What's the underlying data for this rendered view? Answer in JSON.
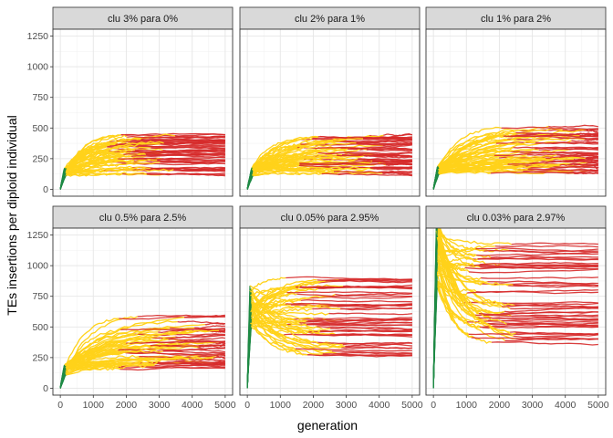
{
  "chart_data": {
    "type": "line",
    "ylabel": "TEs insertions per diploid individual",
    "xlabel": "generation",
    "xlim": [
      0,
      5000
    ],
    "ylim": [
      0,
      1250
    ],
    "xticks": [
      0,
      1000,
      2000,
      3000,
      4000,
      5000
    ],
    "yticks": [
      0,
      250,
      500,
      750,
      1000,
      1250
    ],
    "grid": true,
    "legend": "none",
    "series_colors": {
      "early": "#1e8a45",
      "mid": "#ffd21a",
      "late": "#d62a2a"
    },
    "panels": [
      {
        "title": "clu 3% para 0%",
        "runs": 50,
        "green_end_gen": 150,
        "green_end_value": 150,
        "yellow_end_gen": 3500,
        "yellow_end_value": [
          120,
          470
        ],
        "final_value_range": [
          80,
          470
        ]
      },
      {
        "title": "clu 2% para 1%",
        "runs": 50,
        "green_end_gen": 150,
        "green_end_value": 150,
        "yellow_end_gen": 4200,
        "yellow_end_value": [
          120,
          450
        ],
        "final_value_range": [
          100,
          450
        ]
      },
      {
        "title": "clu 1% para 2%",
        "runs": 50,
        "green_end_gen": 150,
        "green_end_value": 160,
        "yellow_end_gen": 4900,
        "yellow_end_value": [
          130,
          530
        ],
        "final_value_range": [
          110,
          530
        ]
      },
      {
        "title": "clu 0.5% para 2.5%",
        "runs": 50,
        "green_end_gen": 150,
        "green_end_value": 160,
        "yellow_end_gen": 4900,
        "yellow_end_value": [
          150,
          610
        ],
        "final_value_range": [
          130,
          610
        ]
      },
      {
        "title": "clu 0.05% para 2.95%",
        "runs": 50,
        "green_end_gen": 100,
        "green_end_value": 700,
        "yellow_end_gen": 3000,
        "yellow_end_value": [
          250,
          930
        ],
        "final_value_range": [
          240,
          940
        ]
      },
      {
        "title": "clu 0.03% para 2.97%",
        "runs": 50,
        "green_end_gen": 100,
        "green_end_value": 1180,
        "yellow_end_gen": 2500,
        "yellow_end_value": [
          330,
          1220
        ],
        "final_value_range": [
          300,
          1190
        ]
      }
    ]
  }
}
